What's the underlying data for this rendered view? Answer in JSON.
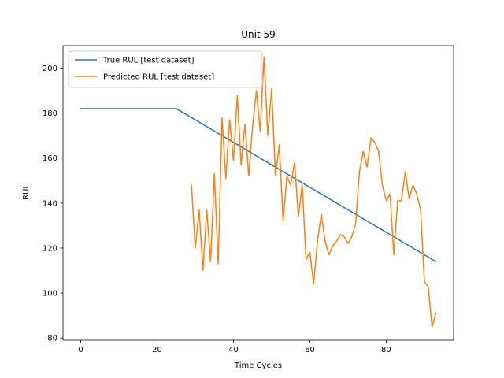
{
  "chart_data": {
    "type": "line",
    "title": "Unit 59",
    "xlabel": "Time Cycles",
    "ylabel": "RUL",
    "xlim": [
      -4.65,
      97.65
    ],
    "ylim": [
      79,
      210
    ],
    "xticks": [
      0,
      20,
      40,
      60,
      80
    ],
    "yticks": [
      80,
      100,
      120,
      140,
      160,
      180,
      200
    ],
    "grid": false,
    "legend_position": "top-left",
    "series": [
      {
        "name": "True RUL [test dataset]",
        "color": "#1f77b4",
        "x": [
          0,
          25,
          93
        ],
        "y": [
          182,
          182,
          114
        ]
      },
      {
        "name": "Predicted RUL [test dataset]",
        "color": "#ff7f0e",
        "x": [
          29,
          30,
          31,
          32,
          33,
          34,
          35,
          36,
          37,
          38,
          39,
          40,
          41,
          42,
          43,
          44,
          45,
          46,
          47,
          48,
          49,
          50,
          51,
          52,
          53,
          54,
          55,
          56,
          57,
          58,
          59,
          60,
          61,
          62,
          63,
          64,
          65,
          66,
          67,
          68,
          69,
          70,
          71,
          72,
          73,
          74,
          75,
          76,
          77,
          78,
          79,
          80,
          81,
          82,
          83,
          84,
          85,
          86,
          87,
          88,
          89,
          90,
          91,
          92,
          93
        ],
        "y": [
          148,
          120,
          137,
          110,
          137,
          114,
          153,
          113,
          178,
          151,
          177,
          159,
          188,
          157,
          175,
          152,
          174,
          190,
          172,
          205,
          170,
          191,
          152,
          166,
          132,
          152,
          148,
          158,
          134,
          148,
          115,
          118,
          104,
          123,
          135,
          123,
          117,
          121,
          123,
          126,
          125,
          122,
          125,
          131,
          154,
          163,
          156,
          169,
          167,
          163,
          148,
          141,
          144,
          117,
          141,
          141,
          154,
          142,
          148,
          144,
          137,
          105,
          103,
          85,
          91
        ]
      }
    ]
  }
}
